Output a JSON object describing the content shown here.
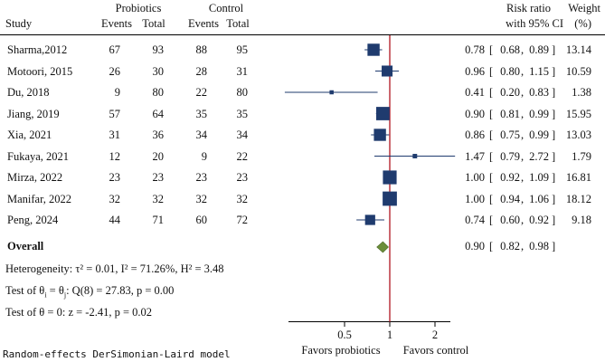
{
  "chart_data": {
    "type": "forest",
    "headers": {
      "study": "Study",
      "probiotics_group": "Probiotics",
      "control_group": "Control",
      "events": "Events",
      "total": "Total",
      "rr_line1": "Risk ratio",
      "rr_line2": "with 95% CI",
      "weight_line1": "Weight",
      "weight_line2": "(%)"
    },
    "studies": [
      {
        "study": "Sharma,2012",
        "pe": 67,
        "pt": 93,
        "ce": 88,
        "ct": 95,
        "rr": 0.78,
        "lo": 0.68,
        "hi": 0.89,
        "rr_str": "0.78",
        "lo_str": "0.68",
        "hi_str": "0.89",
        "weight": "13.14"
      },
      {
        "study": "Motoori, 2015",
        "pe": 26,
        "pt": 30,
        "ce": 28,
        "ct": 31,
        "rr": 0.96,
        "lo": 0.8,
        "hi": 1.15,
        "rr_str": "0.96",
        "lo_str": "0.80",
        "hi_str": "1.15",
        "weight": "10.59"
      },
      {
        "study": "Du, 2018",
        "pe": 9,
        "pt": 80,
        "ce": 22,
        "ct": 80,
        "rr": 0.41,
        "lo": 0.2,
        "hi": 0.83,
        "rr_str": "0.41",
        "lo_str": "0.20",
        "hi_str": "0.83",
        "weight": "1.38"
      },
      {
        "study": "Jiang, 2019",
        "pe": 57,
        "pt": 64,
        "ce": 35,
        "ct": 35,
        "rr": 0.9,
        "lo": 0.81,
        "hi": 0.99,
        "rr_str": "0.90",
        "lo_str": "0.81",
        "hi_str": "0.99",
        "weight": "15.95"
      },
      {
        "study": "Xia, 2021",
        "pe": 31,
        "pt": 36,
        "ce": 34,
        "ct": 34,
        "rr": 0.86,
        "lo": 0.75,
        "hi": 0.99,
        "rr_str": "0.86",
        "lo_str": "0.75",
        "hi_str": "0.99",
        "weight": "13.03"
      },
      {
        "study": "Fukaya, 2021",
        "pe": 12,
        "pt": 20,
        "ce": 9,
        "ct": 22,
        "rr": 1.47,
        "lo": 0.79,
        "hi": 2.72,
        "rr_str": "1.47",
        "lo_str": "0.79",
        "hi_str": "2.72",
        "weight": "1.79"
      },
      {
        "study": "Mirza, 2022",
        "pe": 23,
        "pt": 23,
        "ce": 23,
        "ct": 23,
        "rr": 1.0,
        "lo": 0.92,
        "hi": 1.09,
        "rr_str": "1.00",
        "lo_str": "0.92",
        "hi_str": "1.09",
        "weight": "16.81"
      },
      {
        "study": "Manifar, 2022",
        "pe": 32,
        "pt": 32,
        "ce": 32,
        "ct": 32,
        "rr": 1.0,
        "lo": 0.94,
        "hi": 1.06,
        "rr_str": "1.00",
        "lo_str": "0.94",
        "hi_str": "1.06",
        "weight": "18.12"
      },
      {
        "study": "Peng, 2024",
        "pe": 44,
        "pt": 71,
        "ce": 60,
        "ct": 72,
        "rr": 0.74,
        "lo": 0.6,
        "hi": 0.92,
        "rr_str": "0.74",
        "lo_str": "0.60",
        "hi_str": "0.92",
        "weight": "9.18"
      }
    ],
    "overall": {
      "label": "Overall",
      "rr": 0.9,
      "lo": 0.82,
      "hi": 0.98,
      "rr_str": "0.90",
      "lo_str": "0.82",
      "hi_str": "0.98"
    },
    "stats": {
      "heterogeneity": "Heterogeneity: τ² = 0.01, I² = 71.26%, H² = 3.48",
      "test_theta_prefix": "Test of θ",
      "test_theta_sub_i": "i",
      "test_theta_mid": " = θ",
      "test_theta_sub_j": "j",
      "test_theta_suffix": ": Q(8) = 27.83, p = 0.00",
      "test_zero": "Test of θ = 0: z = -2.41, p = 0.02"
    },
    "x_axis": {
      "scale": "log",
      "ticks": [
        0.5,
        1,
        2
      ],
      "tick_labels": [
        "0.5",
        "1",
        "2"
      ],
      "xlim": [
        0.2,
        2.72
      ]
    },
    "favors_left": "Favors probiotics",
    "favors_right": "Favors control",
    "model_note": "Random-effects DerSimonian-Laird model",
    "colors": {
      "marker": "#1f3b6e",
      "ci_line": "#1f3b6e",
      "null_line": "#b0151f",
      "diamond": "#6b8e3a",
      "rule": "#000000"
    }
  }
}
